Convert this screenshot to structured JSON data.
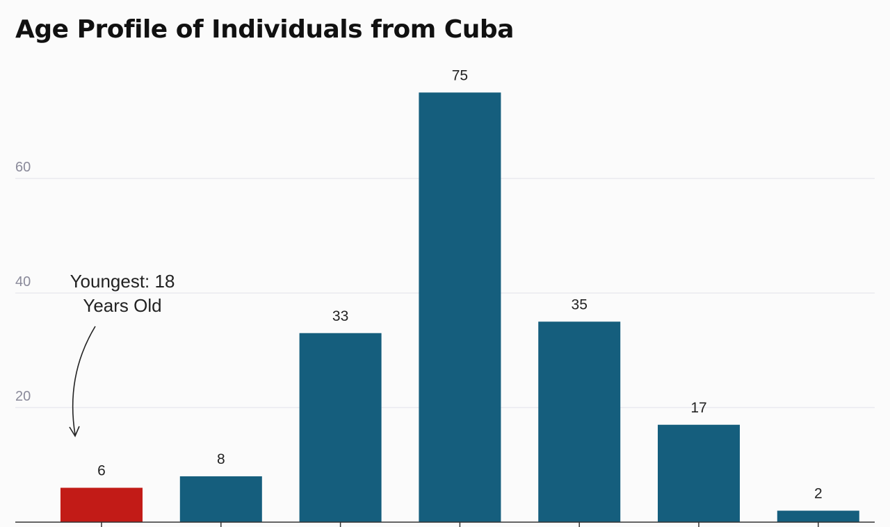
{
  "chart_data": {
    "type": "bar",
    "title": "Age Profile of Individuals from Cuba",
    "categories": [
      "",
      "",
      "",
      "",
      "",
      "",
      ""
    ],
    "values": [
      6,
      8,
      33,
      75,
      35,
      17,
      2
    ],
    "y_ticks": [
      20,
      40,
      60
    ],
    "ylim": [
      0,
      75
    ],
    "grid": true,
    "highlight_index": 0,
    "colors": {
      "bar": "#155e7d",
      "highlight": "#c21b17",
      "grid": "#e0e2ea",
      "axis": "#333333"
    },
    "annotation": {
      "line1": "Youngest: 18",
      "line2": "Years Old",
      "target_index": 0
    }
  }
}
